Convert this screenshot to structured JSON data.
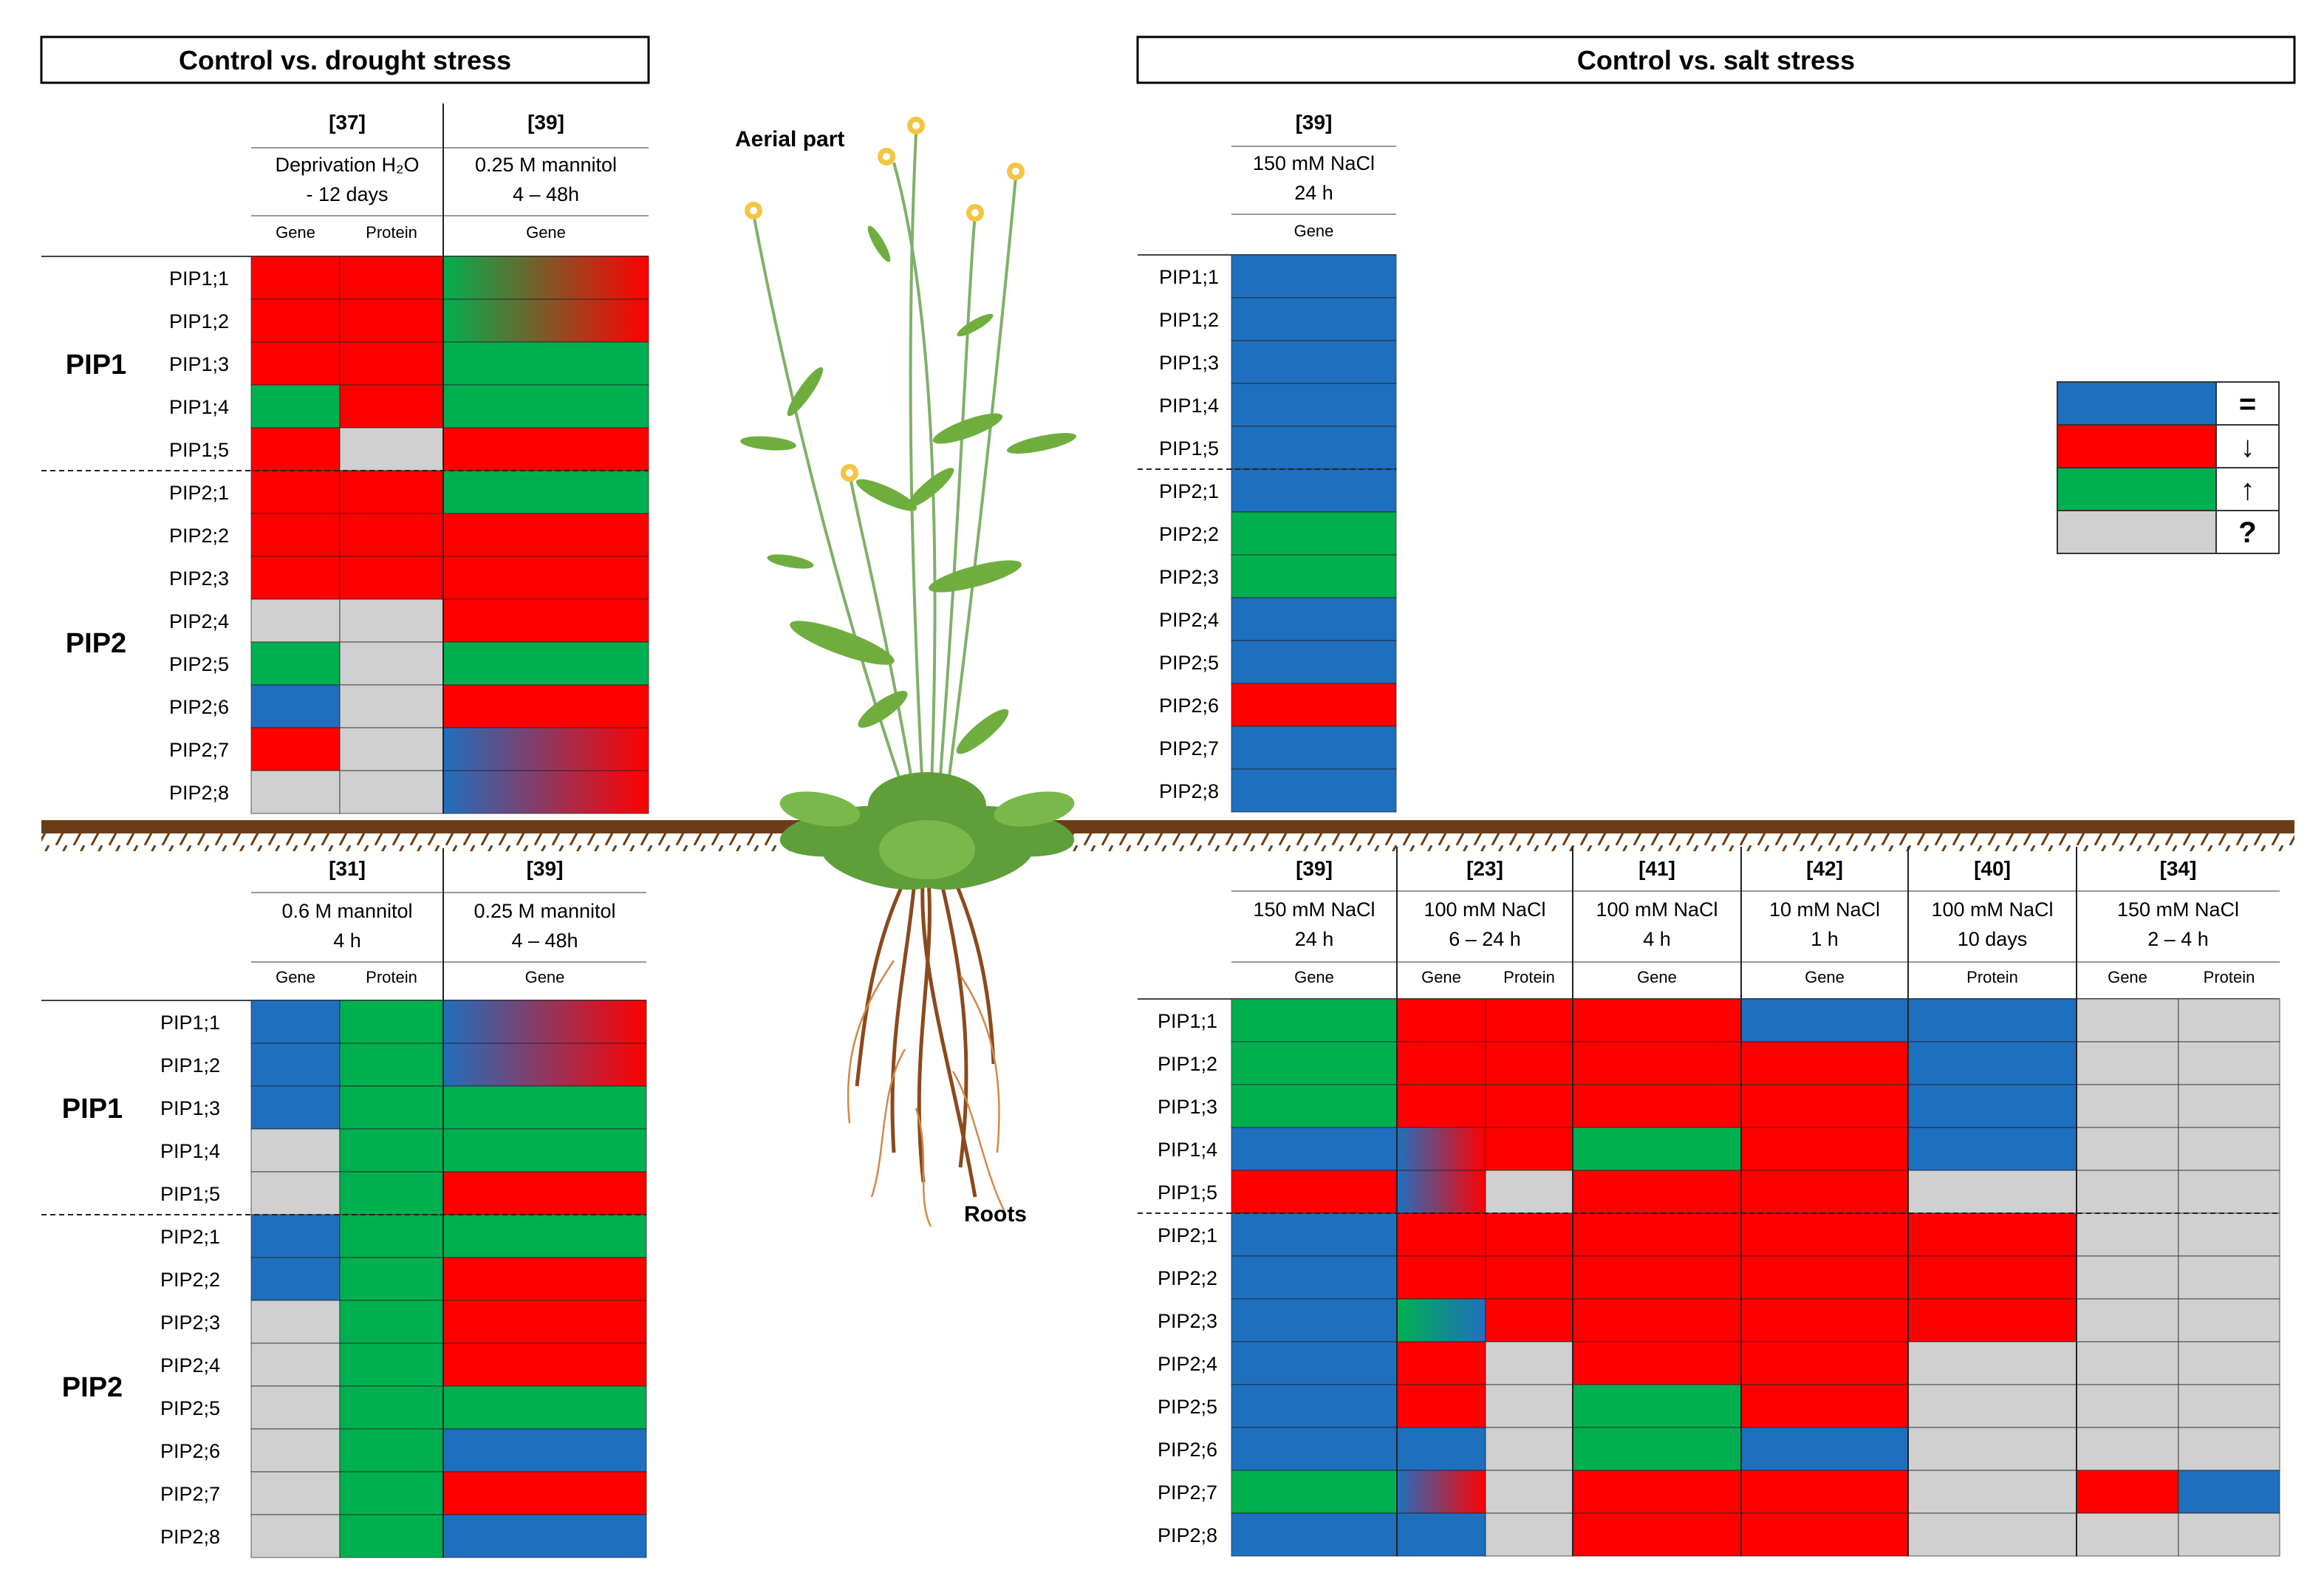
{
  "colors": {
    "blue": "#1f6fbf",
    "red": "#ff0000",
    "green": "#00b050",
    "gray": "#d0d0d0"
  },
  "headers": {
    "drought": "Control vs. drought stress",
    "salt": "Control vs. salt stress"
  },
  "plant": {
    "aerial_label": "Aerial part",
    "roots_label": "Roots"
  },
  "legend": [
    {
      "color": "blue",
      "symbol": "="
    },
    {
      "color": "red",
      "symbol": "↓"
    },
    {
      "color": "green",
      "symbol": "↑"
    },
    {
      "color": "gray",
      "symbol": "?"
    }
  ],
  "genes": [
    "PIP1;1",
    "PIP1;2",
    "PIP1;3",
    "PIP1;4",
    "PIP1;5",
    "PIP2;1",
    "PIP2;2",
    "PIP2;3",
    "PIP2;4",
    "PIP2;5",
    "PIP2;6",
    "PIP2;7",
    "PIP2;8"
  ],
  "groups": [
    "PIP1",
    "PIP2"
  ],
  "panels": [
    {
      "id": "drought-aerial",
      "groups": [
        {
          "ref": "[37]",
          "cond": [
            "Deprivation H₂O",
            "- 12 days"
          ],
          "cols": [
            {
              "label": "Gene",
              "cells": [
                "red",
                "red",
                "red",
                "green",
                "red",
                "red",
                "red",
                "red",
                "gray",
                "green",
                "blue",
                "red",
                "gray"
              ]
            },
            {
              "label": "Protein",
              "cells": [
                "red",
                "red",
                "red",
                "red",
                "gray",
                "red",
                "red",
                "red",
                "gray",
                "gray",
                "gray",
                "gray",
                "gray"
              ]
            }
          ]
        },
        {
          "ref": "[39]",
          "cond": [
            "0.25 M mannitol",
            "4 – 48h"
          ],
          "cols": [
            {
              "label": "Gene",
              "cells": [
                "green>red",
                "green>red",
                "green",
                "green",
                "red",
                "green",
                "red",
                "red",
                "red",
                "green",
                "red",
                "blue>red",
                "blue>red"
              ]
            }
          ]
        }
      ]
    },
    {
      "id": "salt-aerial",
      "groups": [
        {
          "ref": "[39]",
          "cond": [
            "150 mM NaCl",
            "24 h"
          ],
          "cols": [
            {
              "label": "Gene",
              "cells": [
                "blue",
                "blue",
                "blue",
                "blue",
                "blue",
                "blue",
                "green",
                "green",
                "blue",
                "blue",
                "red",
                "blue",
                "blue"
              ]
            }
          ]
        }
      ]
    },
    {
      "id": "drought-roots",
      "groups": [
        {
          "ref": "[31]",
          "cond": [
            "0.6 M mannitol",
            "4 h"
          ],
          "cols": [
            {
              "label": "Gene",
              "cells": [
                "blue",
                "blue",
                "blue",
                "gray",
                "gray",
                "blue",
                "blue",
                "gray",
                "gray",
                "gray",
                "gray",
                "gray",
                "gray"
              ]
            },
            {
              "label": "Protein",
              "cells": [
                "green",
                "green",
                "green",
                "green",
                "green",
                "green",
                "green",
                "green",
                "green",
                "green",
                "green",
                "green",
                "green"
              ]
            }
          ]
        },
        {
          "ref": "[39]",
          "cond": [
            "0.25 M mannitol",
            "4 – 48h"
          ],
          "cols": [
            {
              "label": "Gene",
              "cells": [
                "blue>red",
                "blue>red",
                "green",
                "green",
                "red",
                "green",
                "red",
                "red",
                "red",
                "green",
                "blue",
                "red",
                "blue"
              ]
            }
          ]
        }
      ]
    },
    {
      "id": "salt-roots",
      "groups": [
        {
          "ref": "[39]",
          "cond": [
            "150 mM NaCl",
            "24 h"
          ],
          "cols": [
            {
              "label": "Gene",
              "cells": [
                "green",
                "green",
                "green",
                "blue",
                "red",
                "blue",
                "blue",
                "blue",
                "blue",
                "blue",
                "blue",
                "green",
                "blue"
              ]
            }
          ]
        },
        {
          "ref": "[23]",
          "cond": [
            "100 mM NaCl",
            "6 – 24 h"
          ],
          "cols": [
            {
              "label": "Gene",
              "cells": [
                "red",
                "red",
                "red",
                "blue>red",
                "blue>red",
                "red",
                "red",
                "green>blue",
                "red",
                "red",
                "blue",
                "blue>red",
                "blue"
              ]
            },
            {
              "label": "Protein",
              "cells": [
                "red",
                "red",
                "red",
                "red",
                "gray",
                "red",
                "red",
                "red",
                "gray",
                "gray",
                "gray",
                "gray",
                "gray"
              ]
            }
          ]
        },
        {
          "ref": "[41]",
          "cond": [
            "100 mM NaCl",
            "4 h"
          ],
          "cols": [
            {
              "label": "Gene",
              "cells": [
                "red",
                "red",
                "red",
                "green",
                "red",
                "red",
                "red",
                "red",
                "red",
                "green",
                "green",
                "red",
                "red"
              ]
            }
          ]
        },
        {
          "ref": "[42]",
          "cond": [
            "10 mM NaCl",
            "1 h"
          ],
          "cols": [
            {
              "label": "Gene",
              "cells": [
                "blue",
                "red",
                "red",
                "red",
                "red",
                "red",
                "red",
                "red",
                "red",
                "red",
                "blue",
                "red",
                "red"
              ]
            }
          ]
        },
        {
          "ref": "[40]",
          "cond": [
            "100 mM NaCl",
            "10 days"
          ],
          "cols": [
            {
              "label": "Protein",
              "cells": [
                "blue",
                "blue",
                "blue",
                "blue",
                "gray",
                "red",
                "red",
                "red",
                "gray",
                "gray",
                "gray",
                "gray",
                "gray"
              ]
            }
          ]
        },
        {
          "ref": "[34]",
          "cond": [
            "150 mM NaCl",
            "2 – 4 h"
          ],
          "cols": [
            {
              "label": "Gene",
              "cells": [
                "gray",
                "gray",
                "gray",
                "gray",
                "gray",
                "gray",
                "gray",
                "gray",
                "gray",
                "gray",
                "gray",
                "red",
                "gray"
              ]
            },
            {
              "label": "Protein",
              "cells": [
                "gray",
                "gray",
                "gray",
                "gray",
                "gray",
                "gray",
                "gray",
                "gray",
                "gray",
                "gray",
                "gray",
                "blue",
                "gray"
              ]
            }
          ]
        }
      ]
    }
  ]
}
